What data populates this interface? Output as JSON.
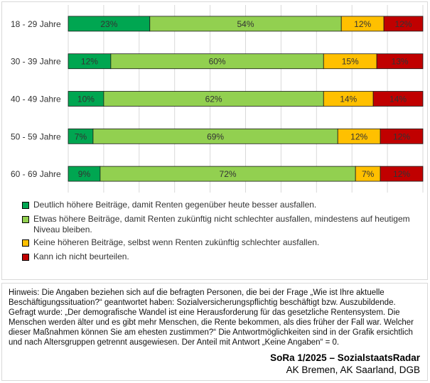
{
  "chart_data": {
    "type": "bar",
    "orientation": "horizontal",
    "stacked": true,
    "percent": true,
    "categories": [
      "18 - 29 Jahre",
      "30 - 39 Jahre",
      "40 - 49 Jahre",
      "50 - 59 Jahre",
      "60 - 69 Jahre"
    ],
    "series": [
      {
        "name": "Deutlich höhere Beiträge, damit Renten gegenüber heute besser ausfallen.",
        "color": "#00a651",
        "values": [
          23,
          12,
          10,
          7,
          9
        ],
        "labels": [
          "23%",
          "12%",
          "10%",
          "7%",
          "9%"
        ]
      },
      {
        "name": "Etwas höhere Beiträge, damit Renten zukünftig nicht schlechter ausfallen, mindestens auf heutigem Niveau bleiben.",
        "color": "#92d050",
        "values": [
          54,
          60,
          62,
          69,
          72
        ],
        "labels": [
          "54%",
          "60%",
          "62%",
          "69%",
          "72%"
        ]
      },
      {
        "name": "Keine höheren Beiträge, selbst wenn Renten zukünftig schlechter ausfallen.",
        "color": "#ffc000",
        "values": [
          12,
          15,
          14,
          12,
          7
        ],
        "labels": [
          "12%",
          "15%",
          "14%",
          "12%",
          "7%"
        ]
      },
      {
        "name": "Kann ich nicht beurteilen.",
        "color": "#c00000",
        "values": [
          12,
          13,
          14,
          12,
          12
        ],
        "labels": [
          "12%",
          "13%",
          "14%",
          "12%",
          "12%"
        ]
      }
    ],
    "xlim": [
      0,
      100
    ],
    "grid": true,
    "legend": "bottom"
  },
  "note": {
    "text": "Hinweis: Die Angaben beziehen sich auf die befragten Personen, die bei der Frage „Wie ist Ihre aktuelle Beschäftigungssituation?“ geantwortet haben: Sozialversicherungspflichtig beschäftigt bzw. Auszubildende. Gefragt wurde: „Der demografische Wandel ist eine Herausforderung für das gesetzliche Rentensystem. Die Menschen werden älter und es gibt mehr Menschen, die Rente bekommen, als dies früher der Fall war. Welcher dieser Maßnahmen können Sie am ehesten zustimmen?“ Die Antwortmöglichkeiten sind in der Grafik ersichtlich und nach Altersgruppen getrennt ausgewiesen. Der Anteil mit Antwort „Keine Angaben“ = 0."
  },
  "source": {
    "title": "SoRa 1/2025 – SozialstaatsRadar",
    "orgs": "AK Bremen, AK Saarland, DGB"
  }
}
